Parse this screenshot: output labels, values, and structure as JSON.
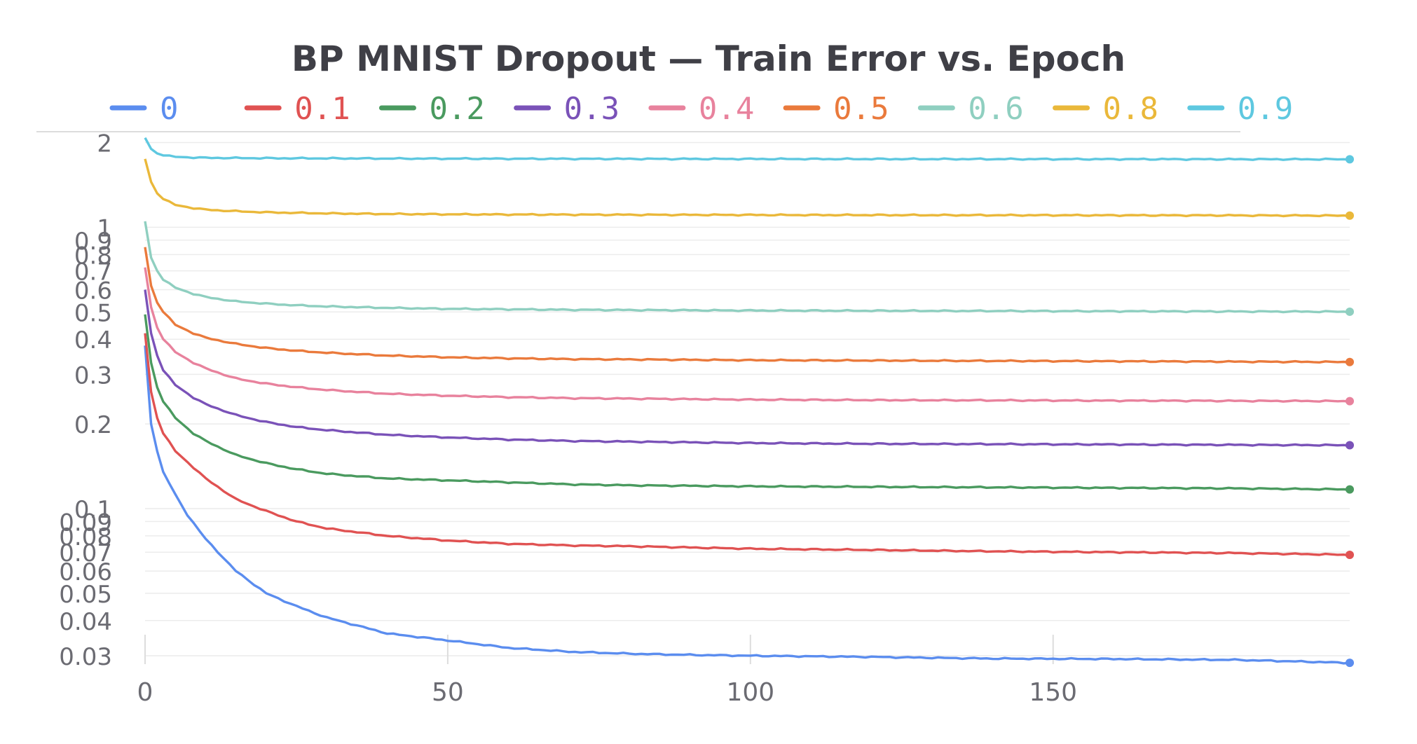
{
  "chart_data": {
    "type": "line",
    "title": "BP MNIST Dropout — Train Error vs. Epoch",
    "xlabel": "",
    "ylabel": "",
    "x_scale": "linear",
    "y_scale": "log",
    "xlim": [
      0,
      199
    ],
    "ylim": [
      0.028,
      2.1
    ],
    "grid": true,
    "legend_position": "top",
    "x_tick_labels": [
      "0",
      "50",
      "100",
      "150"
    ],
    "x_ticks": [
      0,
      50,
      100,
      150
    ],
    "y_ticks": [
      0.03,
      0.04,
      0.05,
      0.06,
      0.07,
      0.08,
      0.09,
      0.1,
      0.2,
      0.3,
      0.4,
      0.5,
      0.6,
      0.7,
      0.8,
      0.9,
      1,
      2
    ],
    "y_tick_labels": [
      "0.03",
      "0.04",
      "0.05",
      "0.06",
      "0.07",
      "0.08",
      "0.09",
      "0.1",
      "0.2",
      "0.3",
      "0.4",
      "0.5",
      "0.6",
      "0.7",
      "0.8",
      "0.9",
      "1",
      "2"
    ],
    "series": [
      {
        "name": "0",
        "color": "#5b8def",
        "points": [
          [
            0,
            0.38
          ],
          [
            1,
            0.2
          ],
          [
            2,
            0.16
          ],
          [
            3,
            0.135
          ],
          [
            5,
            0.112
          ],
          [
            7,
            0.095
          ],
          [
            10,
            0.078
          ],
          [
            15,
            0.06
          ],
          [
            20,
            0.05
          ],
          [
            25,
            0.045
          ],
          [
            30,
            0.041
          ],
          [
            40,
            0.036
          ],
          [
            50,
            0.034
          ],
          [
            60,
            0.032
          ],
          [
            70,
            0.031
          ],
          [
            80,
            0.0305
          ],
          [
            90,
            0.0302
          ],
          [
            100,
            0.03
          ],
          [
            120,
            0.0297
          ],
          [
            140,
            0.0293
          ],
          [
            160,
            0.0292
          ],
          [
            180,
            0.029
          ],
          [
            199,
            0.0283
          ]
        ]
      },
      {
        "name": "0.1",
        "color": "#e05252",
        "points": [
          [
            0,
            0.42
          ],
          [
            1,
            0.26
          ],
          [
            2,
            0.21
          ],
          [
            3,
            0.185
          ],
          [
            5,
            0.16
          ],
          [
            8,
            0.14
          ],
          [
            10,
            0.128
          ],
          [
            15,
            0.108
          ],
          [
            20,
            0.098
          ],
          [
            25,
            0.09
          ],
          [
            30,
            0.085
          ],
          [
            40,
            0.08
          ],
          [
            50,
            0.077
          ],
          [
            60,
            0.075
          ],
          [
            70,
            0.074
          ],
          [
            80,
            0.0735
          ],
          [
            100,
            0.072
          ],
          [
            120,
            0.0713
          ],
          [
            140,
            0.0705
          ],
          [
            160,
            0.07
          ],
          [
            180,
            0.0695
          ],
          [
            199,
            0.0685
          ]
        ]
      },
      {
        "name": "0.2",
        "color": "#4a9a5f",
        "points": [
          [
            0,
            0.49
          ],
          [
            1,
            0.33
          ],
          [
            2,
            0.27
          ],
          [
            3,
            0.24
          ],
          [
            5,
            0.21
          ],
          [
            8,
            0.185
          ],
          [
            10,
            0.174
          ],
          [
            15,
            0.155
          ],
          [
            20,
            0.145
          ],
          [
            25,
            0.138
          ],
          [
            30,
            0.133
          ],
          [
            40,
            0.128
          ],
          [
            50,
            0.126
          ],
          [
            60,
            0.124
          ],
          [
            70,
            0.122
          ],
          [
            80,
            0.121
          ],
          [
            100,
            0.12
          ],
          [
            120,
            0.1195
          ],
          [
            140,
            0.119
          ],
          [
            160,
            0.1185
          ],
          [
            180,
            0.118
          ],
          [
            199,
            0.117
          ]
        ]
      },
      {
        "name": "0.3",
        "color": "#7a52b8",
        "points": [
          [
            0,
            0.6
          ],
          [
            1,
            0.42
          ],
          [
            2,
            0.35
          ],
          [
            3,
            0.31
          ],
          [
            5,
            0.275
          ],
          [
            8,
            0.248
          ],
          [
            10,
            0.235
          ],
          [
            15,
            0.215
          ],
          [
            20,
            0.203
          ],
          [
            25,
            0.195
          ],
          [
            30,
            0.19
          ],
          [
            40,
            0.183
          ],
          [
            50,
            0.179
          ],
          [
            60,
            0.176
          ],
          [
            70,
            0.174
          ],
          [
            80,
            0.173
          ],
          [
            100,
            0.171
          ],
          [
            120,
            0.17
          ],
          [
            140,
            0.1695
          ],
          [
            160,
            0.169
          ],
          [
            180,
            0.1685
          ],
          [
            199,
            0.168
          ]
        ]
      },
      {
        "name": "0.4",
        "color": "#e8829d",
        "points": [
          [
            0,
            0.72
          ],
          [
            1,
            0.52
          ],
          [
            2,
            0.44
          ],
          [
            3,
            0.4
          ],
          [
            5,
            0.36
          ],
          [
            8,
            0.33
          ],
          [
            10,
            0.315
          ],
          [
            15,
            0.29
          ],
          [
            20,
            0.278
          ],
          [
            25,
            0.27
          ],
          [
            30,
            0.264
          ],
          [
            40,
            0.256
          ],
          [
            50,
            0.252
          ],
          [
            60,
            0.249
          ],
          [
            70,
            0.247
          ],
          [
            80,
            0.246
          ],
          [
            100,
            0.244
          ],
          [
            120,
            0.243
          ],
          [
            140,
            0.2425
          ],
          [
            160,
            0.242
          ],
          [
            180,
            0.2415
          ],
          [
            199,
            0.241
          ]
        ]
      },
      {
        "name": "0.5",
        "color": "#ea7a3c",
        "points": [
          [
            0,
            0.85
          ],
          [
            1,
            0.62
          ],
          [
            2,
            0.54
          ],
          [
            3,
            0.5
          ],
          [
            5,
            0.45
          ],
          [
            8,
            0.42
          ],
          [
            10,
            0.405
          ],
          [
            15,
            0.385
          ],
          [
            20,
            0.372
          ],
          [
            25,
            0.364
          ],
          [
            30,
            0.358
          ],
          [
            40,
            0.35
          ],
          [
            50,
            0.345
          ],
          [
            60,
            0.342
          ],
          [
            70,
            0.34
          ],
          [
            80,
            0.339
          ],
          [
            100,
            0.337
          ],
          [
            120,
            0.336
          ],
          [
            140,
            0.335
          ],
          [
            160,
            0.334
          ],
          [
            180,
            0.333
          ],
          [
            199,
            0.332
          ]
        ]
      },
      {
        "name": "0.6",
        "color": "#8fcfc0",
        "points": [
          [
            0,
            1.05
          ],
          [
            1,
            0.78
          ],
          [
            2,
            0.7
          ],
          [
            3,
            0.65
          ],
          [
            5,
            0.61
          ],
          [
            8,
            0.58
          ],
          [
            10,
            0.565
          ],
          [
            15,
            0.545
          ],
          [
            20,
            0.535
          ],
          [
            25,
            0.528
          ],
          [
            30,
            0.523
          ],
          [
            40,
            0.517
          ],
          [
            50,
            0.513
          ],
          [
            60,
            0.511
          ],
          [
            70,
            0.509
          ],
          [
            80,
            0.508
          ],
          [
            100,
            0.506
          ],
          [
            120,
            0.505
          ],
          [
            140,
            0.504
          ],
          [
            160,
            0.503
          ],
          [
            180,
            0.502
          ],
          [
            199,
            0.501
          ]
        ]
      },
      {
        "name": "0.8",
        "color": "#eab83a",
        "points": [
          [
            0,
            1.75
          ],
          [
            1,
            1.45
          ],
          [
            2,
            1.32
          ],
          [
            3,
            1.26
          ],
          [
            5,
            1.2
          ],
          [
            8,
            1.17
          ],
          [
            10,
            1.155
          ],
          [
            15,
            1.14
          ],
          [
            20,
            1.13
          ],
          [
            25,
            1.125
          ],
          [
            30,
            1.12
          ],
          [
            40,
            1.115
          ],
          [
            50,
            1.112
          ],
          [
            60,
            1.11
          ],
          [
            80,
            1.108
          ],
          [
            100,
            1.106
          ],
          [
            120,
            1.105
          ],
          [
            140,
            1.104
          ],
          [
            160,
            1.103
          ],
          [
            180,
            1.102
          ],
          [
            199,
            1.1
          ]
        ]
      },
      {
        "name": "0.9",
        "color": "#5ec8e0",
        "points": [
          [
            0,
            2.08
          ],
          [
            1,
            1.9
          ],
          [
            2,
            1.83
          ],
          [
            3,
            1.8
          ],
          [
            5,
            1.78
          ],
          [
            8,
            1.77
          ],
          [
            10,
            1.765
          ],
          [
            20,
            1.76
          ],
          [
            40,
            1.755
          ],
          [
            60,
            1.752
          ],
          [
            80,
            1.75
          ],
          [
            100,
            1.749
          ],
          [
            120,
            1.748
          ],
          [
            140,
            1.747
          ],
          [
            160,
            1.746
          ],
          [
            180,
            1.745
          ],
          [
            199,
            1.744
          ]
        ]
      }
    ]
  }
}
